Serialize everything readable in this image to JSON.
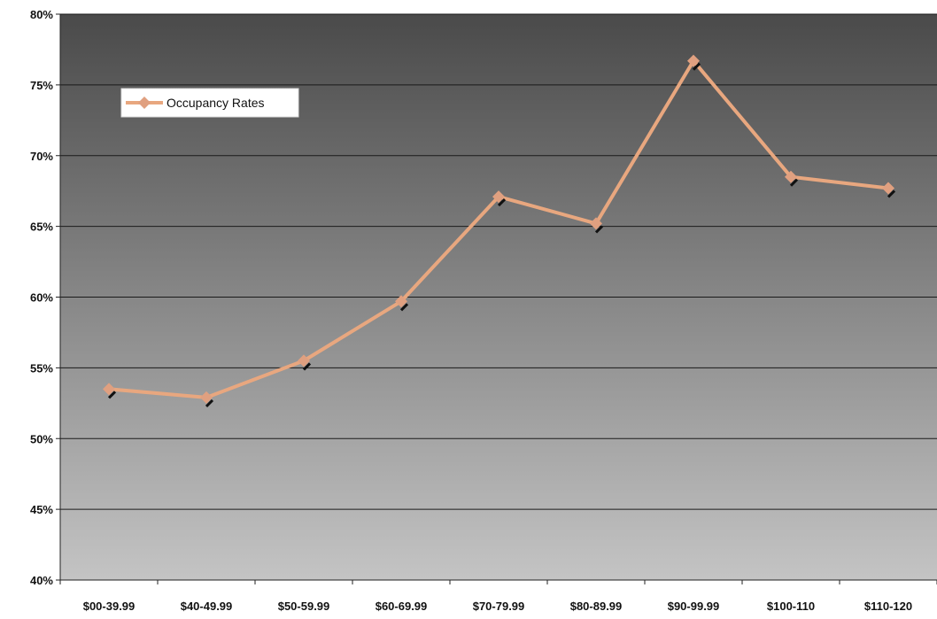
{
  "chart_data": {
    "type": "line",
    "title": "",
    "xlabel": "",
    "ylabel": "",
    "categories": [
      "$00-39.99",
      "$40-49.99",
      "$50-59.99",
      "$60-69.99",
      "$70-79.99",
      "$80-89.99",
      "$90-99.99",
      "$100-110",
      "$110-120"
    ],
    "series": [
      {
        "name": "Occupancy Rates",
        "values": [
          53.5,
          52.9,
          55.5,
          59.7,
          67.1,
          65.2,
          76.7,
          68.5,
          67.7
        ]
      }
    ],
    "ylim": [
      40,
      80
    ],
    "yticks": [
      40,
      45,
      50,
      55,
      60,
      65,
      70,
      75,
      80
    ],
    "ytick_labels": [
      "40%",
      "45%",
      "50%",
      "55%",
      "60%",
      "65%",
      "70%",
      "75%",
      "80%"
    ],
    "grid": true,
    "legend_position": "top-left",
    "colors": {
      "line": "#e8a77f",
      "marker": "#e0a080",
      "marker_shadow": "#111111",
      "plot_bg_top": "#4a4a4a",
      "plot_bg_bottom": "#c4c4c4",
      "gridline": "#1a1a1a"
    }
  }
}
